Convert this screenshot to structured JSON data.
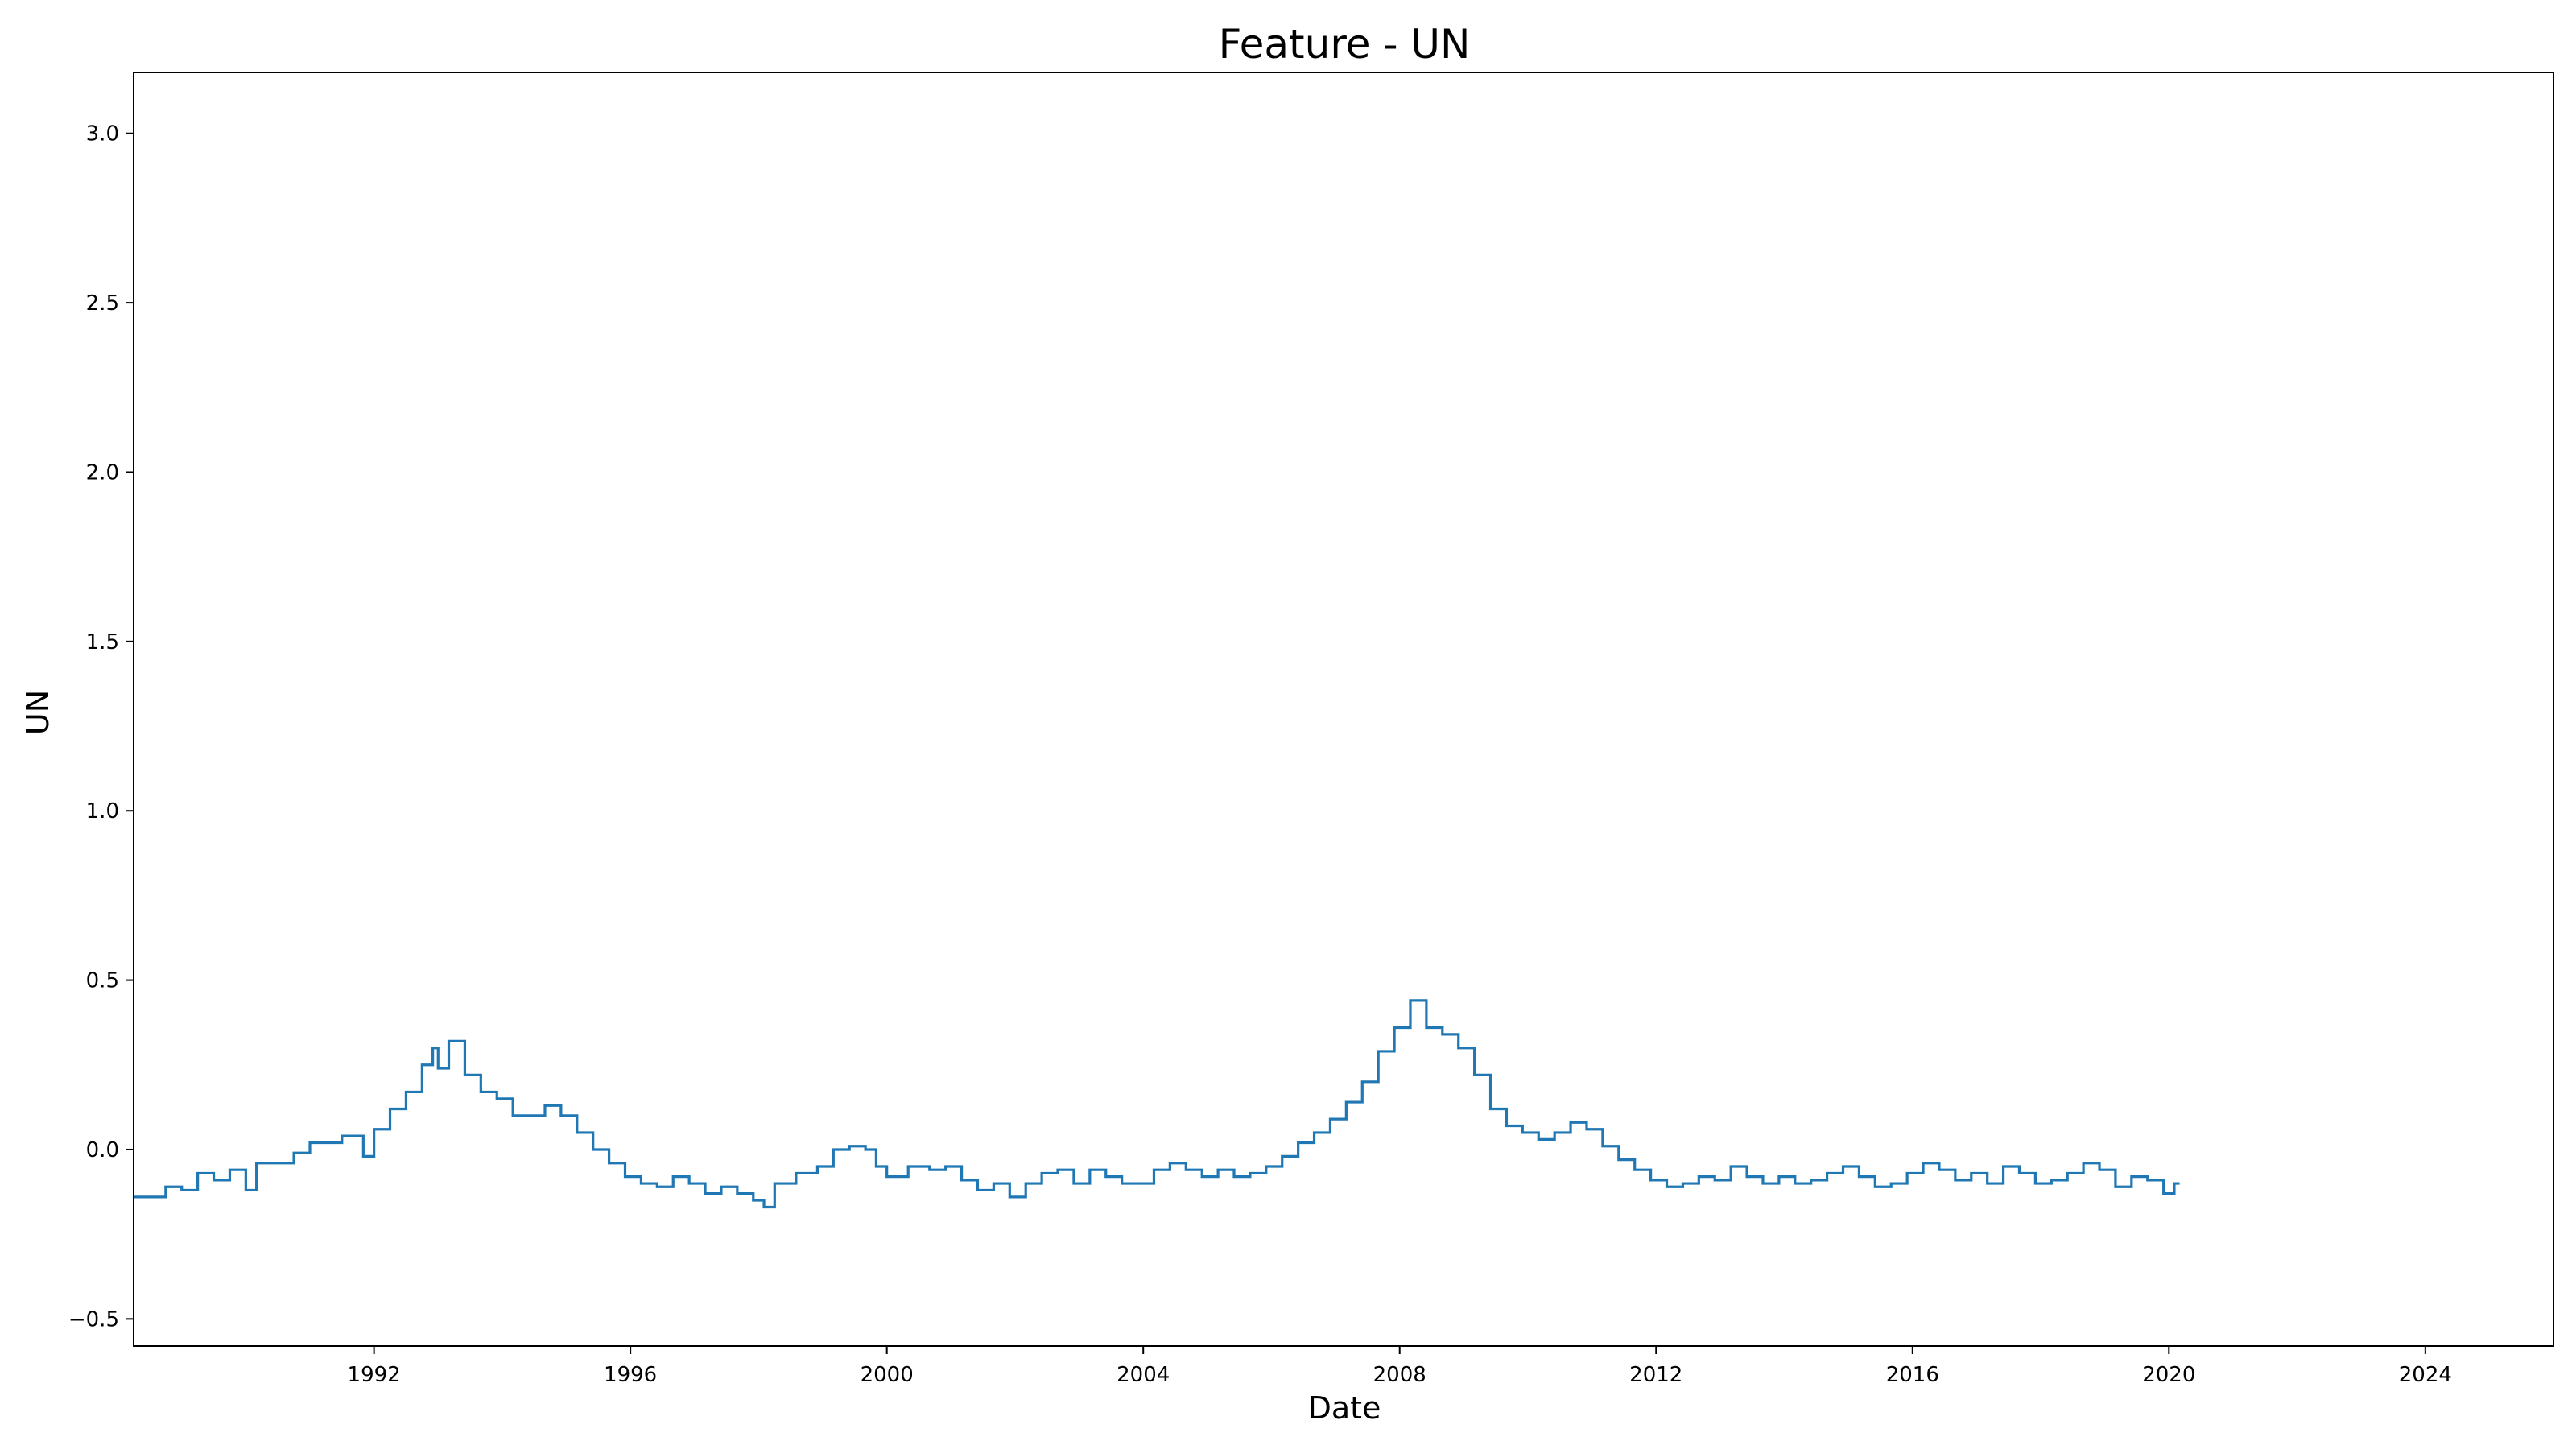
{
  "chart_data": {
    "type": "line",
    "title": "Feature - UN",
    "xlabel": "Date",
    "ylabel": "UN",
    "x_range": [
      "1988-04-01",
      "2025-12-31"
    ],
    "ylim": [
      -0.58,
      3.18
    ],
    "grid": false,
    "legend": "none",
    "x_ticks": [
      "1992",
      "1996",
      "2000",
      "2004",
      "2008",
      "2012",
      "2016",
      "2020",
      "2024"
    ],
    "y_ticks": [
      {
        "value": -0.5,
        "label": "−0.5"
      },
      {
        "value": 0.0,
        "label": "0.0"
      },
      {
        "value": 0.5,
        "label": "0.5"
      },
      {
        "value": 1.0,
        "label": "1.0"
      },
      {
        "value": 1.5,
        "label": "1.5"
      },
      {
        "value": 2.0,
        "label": "2.0"
      },
      {
        "value": 2.5,
        "label": "2.5"
      },
      {
        "value": 3.0,
        "label": "3.0"
      }
    ],
    "series": [
      {
        "color": "#1f77b4",
        "points": [
          [
            "1988-04",
            -0.14
          ],
          [
            "1988-10",
            -0.11
          ],
          [
            "1989-01",
            -0.12
          ],
          [
            "1989-04",
            -0.07
          ],
          [
            "1989-07",
            -0.09
          ],
          [
            "1989-10",
            -0.06
          ],
          [
            "1990-01",
            -0.12
          ],
          [
            "1990-03",
            -0.04
          ],
          [
            "1990-07",
            -0.04
          ],
          [
            "1990-10",
            -0.01
          ],
          [
            "1991-01",
            0.02
          ],
          [
            "1991-04",
            0.02
          ],
          [
            "1991-07",
            0.04
          ],
          [
            "1991-10",
            0.04
          ],
          [
            "1991-11",
            -0.02
          ],
          [
            "1992-01",
            0.06
          ],
          [
            "1992-04",
            0.12
          ],
          [
            "1992-07",
            0.17
          ],
          [
            "1992-10",
            0.25
          ],
          [
            "1992-12",
            0.3
          ],
          [
            "1993-01",
            0.24
          ],
          [
            "1993-03",
            0.32
          ],
          [
            "1993-06",
            0.22
          ],
          [
            "1993-09",
            0.17
          ],
          [
            "1993-12",
            0.15
          ],
          [
            "1994-03",
            0.1
          ],
          [
            "1994-06",
            0.1
          ],
          [
            "1994-09",
            0.13
          ],
          [
            "1994-12",
            0.1
          ],
          [
            "1995-03",
            0.05
          ],
          [
            "1995-06",
            0.0
          ],
          [
            "1995-09",
            -0.04
          ],
          [
            "1995-12",
            -0.08
          ],
          [
            "1996-03",
            -0.1
          ],
          [
            "1996-06",
            -0.11
          ],
          [
            "1996-09",
            -0.08
          ],
          [
            "1996-12",
            -0.1
          ],
          [
            "1997-03",
            -0.13
          ],
          [
            "1997-06",
            -0.11
          ],
          [
            "1997-09",
            -0.13
          ],
          [
            "1997-12",
            -0.15
          ],
          [
            "1998-02",
            -0.17
          ],
          [
            "1998-04",
            -0.1
          ],
          [
            "1998-08",
            -0.07
          ],
          [
            "1998-12",
            -0.05
          ],
          [
            "1999-03",
            0.0
          ],
          [
            "1999-06",
            0.01
          ],
          [
            "1999-09",
            0.0
          ],
          [
            "1999-11",
            -0.05
          ],
          [
            "2000-01",
            -0.08
          ],
          [
            "2000-05",
            -0.05
          ],
          [
            "2000-09",
            -0.06
          ],
          [
            "2000-12",
            -0.05
          ],
          [
            "2001-03",
            -0.09
          ],
          [
            "2001-06",
            -0.12
          ],
          [
            "2001-09",
            -0.1
          ],
          [
            "2001-12",
            -0.14
          ],
          [
            "2002-03",
            -0.1
          ],
          [
            "2002-06",
            -0.07
          ],
          [
            "2002-09",
            -0.06
          ],
          [
            "2002-12",
            -0.1
          ],
          [
            "2003-03",
            -0.06
          ],
          [
            "2003-06",
            -0.08
          ],
          [
            "2003-09",
            -0.1
          ],
          [
            "2003-12",
            -0.1
          ],
          [
            "2004-03",
            -0.06
          ],
          [
            "2004-06",
            -0.04
          ],
          [
            "2004-09",
            -0.06
          ],
          [
            "2004-12",
            -0.08
          ],
          [
            "2005-03",
            -0.06
          ],
          [
            "2005-06",
            -0.08
          ],
          [
            "2005-09",
            -0.07
          ],
          [
            "2005-12",
            -0.05
          ],
          [
            "2006-03",
            -0.02
          ],
          [
            "2006-06",
            0.02
          ],
          [
            "2006-09",
            0.05
          ],
          [
            "2006-12",
            0.09
          ],
          [
            "2007-03",
            0.14
          ],
          [
            "2007-06",
            0.2
          ],
          [
            "2007-09",
            0.29
          ],
          [
            "2007-12",
            0.36
          ],
          [
            "2008-03",
            0.44
          ],
          [
            "2008-06",
            0.36
          ],
          [
            "2008-09",
            0.34
          ],
          [
            "2008-12",
            0.3
          ],
          [
            "2009-03",
            0.22
          ],
          [
            "2009-06",
            0.12
          ],
          [
            "2009-09",
            0.07
          ],
          [
            "2009-12",
            0.05
          ],
          [
            "2010-03",
            0.03
          ],
          [
            "2010-06",
            0.05
          ],
          [
            "2010-09",
            0.08
          ],
          [
            "2010-12",
            0.06
          ],
          [
            "2011-03",
            0.01
          ],
          [
            "2011-06",
            -0.03
          ],
          [
            "2011-09",
            -0.06
          ],
          [
            "2011-12",
            -0.09
          ],
          [
            "2012-03",
            -0.11
          ],
          [
            "2012-06",
            -0.1
          ],
          [
            "2012-09",
            -0.08
          ],
          [
            "2012-12",
            -0.09
          ],
          [
            "2013-03",
            -0.05
          ],
          [
            "2013-06",
            -0.08
          ],
          [
            "2013-09",
            -0.1
          ],
          [
            "2013-12",
            -0.08
          ],
          [
            "2014-03",
            -0.1
          ],
          [
            "2014-06",
            -0.09
          ],
          [
            "2014-09",
            -0.07
          ],
          [
            "2014-12",
            -0.05
          ],
          [
            "2015-03",
            -0.08
          ],
          [
            "2015-06",
            -0.11
          ],
          [
            "2015-09",
            -0.1
          ],
          [
            "2015-12",
            -0.07
          ],
          [
            "2016-03",
            -0.04
          ],
          [
            "2016-06",
            -0.06
          ],
          [
            "2016-09",
            -0.09
          ],
          [
            "2016-12",
            -0.07
          ],
          [
            "2017-03",
            -0.1
          ],
          [
            "2017-06",
            -0.05
          ],
          [
            "2017-09",
            -0.07
          ],
          [
            "2017-12",
            -0.1
          ],
          [
            "2018-03",
            -0.09
          ],
          [
            "2018-06",
            -0.07
          ],
          [
            "2018-09",
            -0.04
          ],
          [
            "2018-12",
            -0.06
          ],
          [
            "2019-03",
            -0.11
          ],
          [
            "2019-06",
            -0.08
          ],
          [
            "2019-09",
            -0.09
          ],
          [
            "2019-12",
            -0.13
          ],
          [
            "2020-02",
            -0.1
          ]
        ]
      }
    ]
  }
}
